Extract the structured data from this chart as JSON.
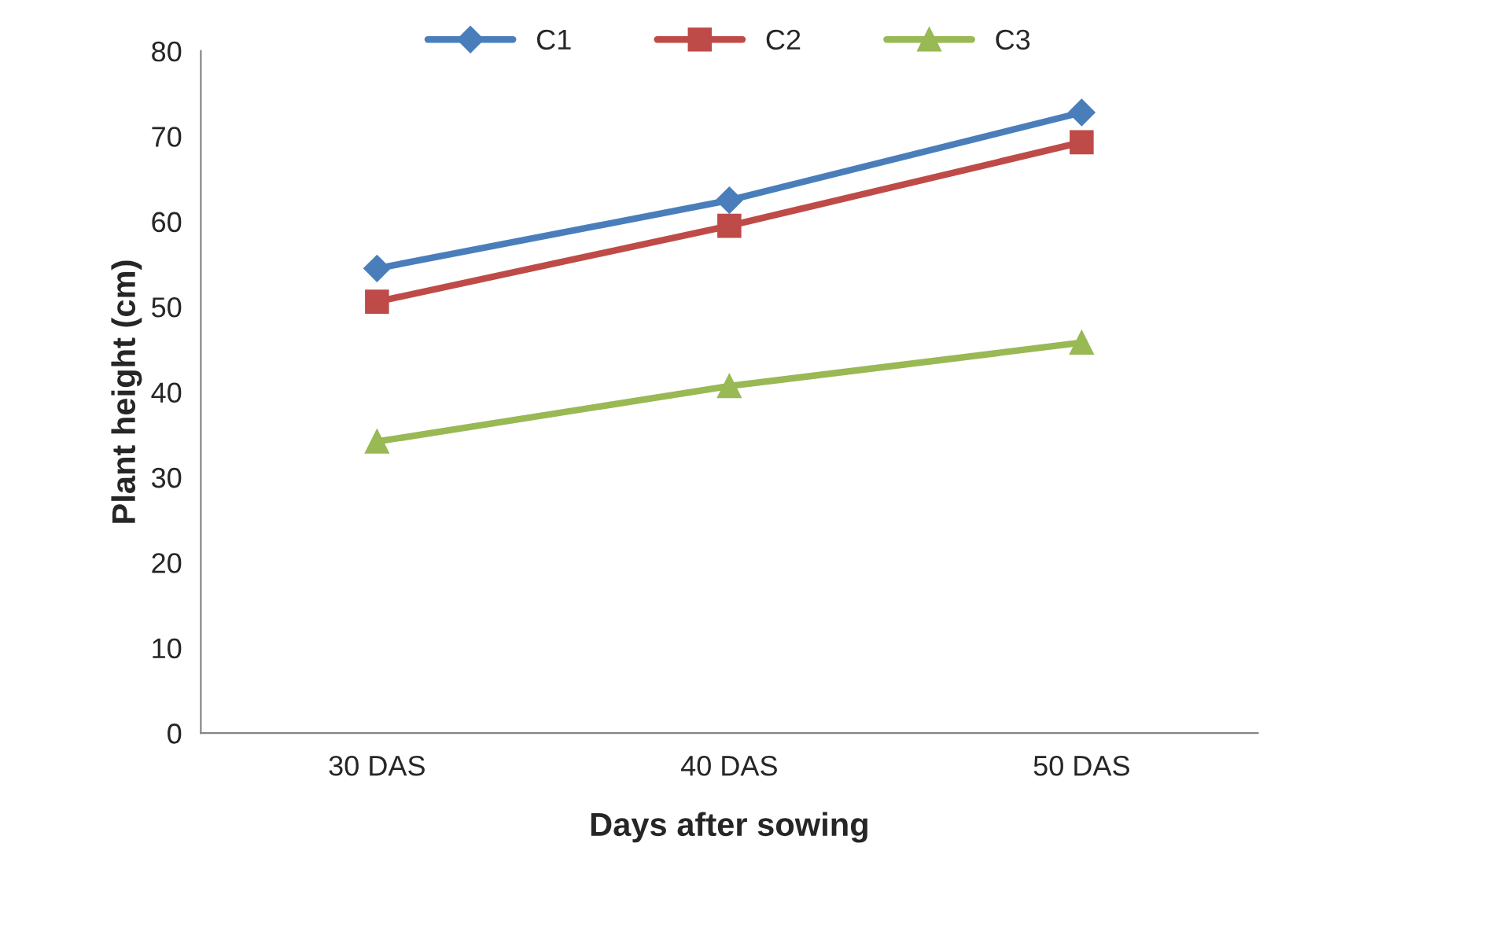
{
  "chart_data": {
    "type": "line",
    "xlabel": "Days after sowing",
    "ylabel": "Plant height (cm)",
    "categories": [
      "30 DAS",
      "40 DAS",
      "50 DAS"
    ],
    "ylim": [
      0,
      80
    ],
    "yticks": [
      0,
      10,
      20,
      30,
      40,
      50,
      60,
      70,
      80
    ],
    "grid": false,
    "legend": "top",
    "line_style": "solid",
    "series": [
      {
        "name": "C1",
        "color": "#4a7ebb",
        "marker": "diamond",
        "values": [
          54.5,
          62.5,
          72.8
        ]
      },
      {
        "name": "C2",
        "color": "#be4b48",
        "marker": "square",
        "values": [
          50.6,
          59.5,
          69.3
        ]
      },
      {
        "name": "C3",
        "color": "#98b954",
        "marker": "triangle",
        "values": [
          34.2,
          40.7,
          45.8
        ]
      }
    ]
  }
}
